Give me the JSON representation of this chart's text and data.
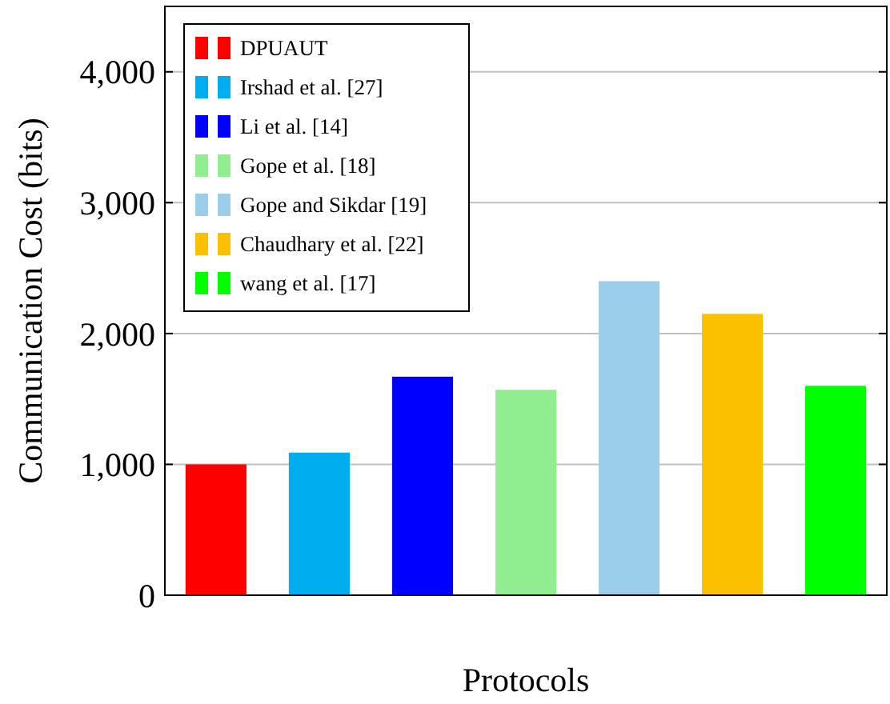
{
  "chart_data": {
    "type": "bar",
    "xlabel": "Protocols",
    "ylabel": "Communication Cost (bits)",
    "categories": [
      null,
      null,
      null,
      null,
      null,
      null,
      null
    ],
    "series": [
      {
        "name": "DPUAUT",
        "color": "#ff0000",
        "values": [
          1000,
          null,
          null,
          null,
          null,
          null,
          null
        ]
      },
      {
        "name": "Irshad et al. [27]",
        "color": "#00aeef",
        "values": [
          null,
          1090,
          null,
          null,
          null,
          null,
          null
        ]
      },
      {
        "name": "Li et al. [14]",
        "color": "#0000ff",
        "values": [
          null,
          null,
          1670,
          null,
          null,
          null,
          null
        ]
      },
      {
        "name": "Gope et al. [18]",
        "color": "#90ee90",
        "values": [
          null,
          null,
          null,
          1570,
          null,
          null,
          null
        ]
      },
      {
        "name": "Gope and Sikdar [19]",
        "color": "#9acee9",
        "values": [
          null,
          null,
          null,
          null,
          2400,
          null,
          null
        ]
      },
      {
        "name": "Chaudhary et al. [22]",
        "color": "#fbc000",
        "values": [
          null,
          null,
          null,
          null,
          null,
          2150,
          null
        ]
      },
      {
        "name": "wang et al. [17]",
        "color": "#00ff00",
        "values": [
          null,
          null,
          null,
          null,
          null,
          null,
          1600
        ]
      }
    ],
    "ylim": [
      0,
      4500
    ],
    "yticks": [
      {
        "value": 0,
        "label": "0"
      },
      {
        "value": 1000,
        "label": "1,000"
      },
      {
        "value": 2000,
        "label": "2,000"
      },
      {
        "value": 3000,
        "label": "3,000"
      },
      {
        "value": 4000,
        "label": "4,000"
      }
    ],
    "grid": "y",
    "legend": "top left"
  }
}
